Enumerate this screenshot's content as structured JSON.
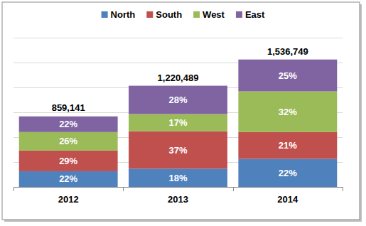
{
  "chart_data": {
    "type": "bar",
    "stacked": true,
    "data_labels": true,
    "grid": true,
    "legend": "top",
    "tick_labels": "x",
    "categories": [
      "2012",
      "2013",
      "2014"
    ],
    "ylim": [
      0,
      1800000
    ],
    "yticks": [
      0,
      300000,
      600000,
      900000,
      1200000,
      1500000,
      1800000
    ],
    "totals": [
      859141,
      1220489,
      1536749
    ],
    "total_labels": [
      "859,141",
      "1,220,489",
      "1,536,749"
    ],
    "series": [
      {
        "name": "North",
        "color": "#4f81bd",
        "values": [
          22,
          18,
          22
        ],
        "value_labels": [
          "22%",
          "18%",
          "22%"
        ]
      },
      {
        "name": "South",
        "color": "#c0504d",
        "values": [
          29,
          37,
          21
        ],
        "value_labels": [
          "29%",
          "37%",
          "21%"
        ]
      },
      {
        "name": "West",
        "color": "#9bbb59",
        "values": [
          26,
          17,
          32
        ],
        "value_labels": [
          "26%",
          "17%",
          "32%"
        ]
      },
      {
        "name": "East",
        "color": "#8064a2",
        "values": [
          22,
          28,
          25
        ],
        "value_labels": [
          "22%",
          "28%",
          "25%"
        ]
      }
    ]
  }
}
